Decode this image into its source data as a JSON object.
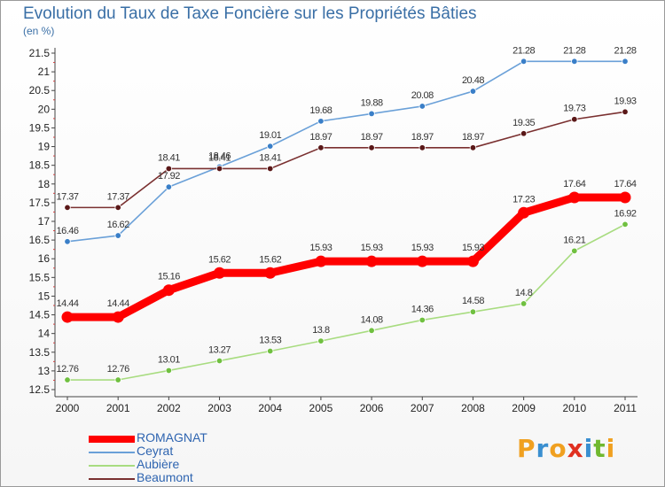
{
  "title": "Evolution du Taux de Taxe Foncière sur les Propriétés Bâties",
  "unit": "(en %)",
  "logo": [
    "P",
    "r",
    "o",
    "x",
    "i",
    "t",
    "i"
  ],
  "logo_colors": [
    "#f0a020",
    "#3a8fd0",
    "#f0a020",
    "#e03020",
    "#3a8fd0",
    "#70b830",
    "#f0a020"
  ],
  "chart_data": {
    "type": "line",
    "x": [
      "2000",
      "2001",
      "2002",
      "2003",
      "2004",
      "2005",
      "2006",
      "2007",
      "2008",
      "2009",
      "2010",
      "2011"
    ],
    "ylim": [
      12.5,
      21.5
    ],
    "yticks": [
      "12.5",
      "13",
      "13.5",
      "14",
      "14.5",
      "15",
      "15.5",
      "16",
      "16.5",
      "17",
      "17.5",
      "18",
      "18.5",
      "19",
      "19.5",
      "20",
      "20.5",
      "21",
      "21.5"
    ],
    "grid": false,
    "legend_position": "bottom-left",
    "series": [
      {
        "name": "ROMAGNAT",
        "color": "#ff0000",
        "width": "thick",
        "values": [
          14.44,
          14.44,
          15.16,
          15.62,
          15.62,
          15.93,
          15.93,
          15.93,
          15.93,
          17.23,
          17.64,
          17.64
        ],
        "labels": [
          "14.44",
          "14.44",
          "15.16",
          "15.62",
          "15.62",
          "15.93",
          "15.93",
          "15.93",
          "15.93",
          "17.23",
          "17.64",
          "17.64"
        ]
      },
      {
        "name": "Ceyrat",
        "color": "#6aa0d8",
        "marker": "#3a7fc8",
        "values": [
          16.46,
          16.62,
          17.92,
          18.46,
          19.01,
          19.68,
          19.88,
          20.08,
          20.48,
          21.28,
          21.28,
          21.28
        ],
        "labels": [
          "16.46",
          "16.62",
          "17.92",
          "18.46",
          "19.01",
          "19.68",
          "19.88",
          "20.08",
          "20.48",
          "21.28",
          "21.28",
          "21.28"
        ]
      },
      {
        "name": "Aubière",
        "color": "#a8dc80",
        "marker": "#70c040",
        "values": [
          12.76,
          12.76,
          13.01,
          13.27,
          13.53,
          13.8,
          14.08,
          14.36,
          14.58,
          14.8,
          16.21,
          16.92
        ],
        "labels": [
          "12.76",
          "12.76",
          "13.01",
          "13.27",
          "13.53",
          "13.8",
          "14.08",
          "14.36",
          "14.58",
          "14.8",
          "16.21",
          "16.92"
        ]
      },
      {
        "name": "Beaumont",
        "color": "#7a3030",
        "marker": "#5a1818",
        "values": [
          17.37,
          17.37,
          18.41,
          18.41,
          18.41,
          18.97,
          18.97,
          18.97,
          18.97,
          19.35,
          19.73,
          19.93
        ],
        "labels": [
          "17.37",
          "17.37",
          "18.41",
          "18.41",
          "18.41",
          "18.97",
          "18.97",
          "18.97",
          "18.97",
          "19.35",
          "19.73",
          "19.93"
        ]
      }
    ]
  }
}
